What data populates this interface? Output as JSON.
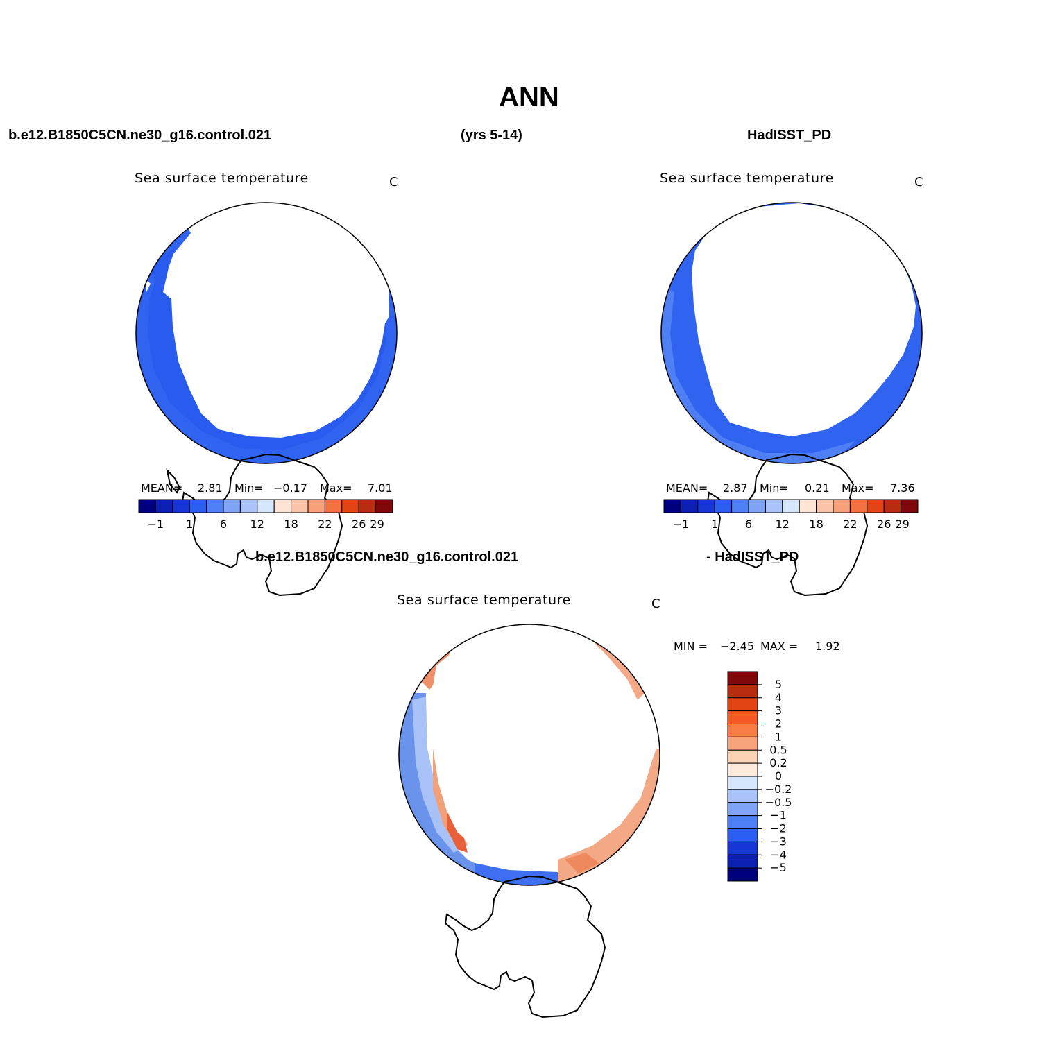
{
  "title": "ANN",
  "header": {
    "left": "b.e12.B1850C5CN.ne30_g16.control.021",
    "center": "(yrs 5-14)",
    "right": "HadISST_PD"
  },
  "diff_header": {
    "left": "b.e12.B1850C5CN.ne30_g16.control.021",
    "right": "- HadISST_PD"
  },
  "colors": {
    "ice": "#ffffff",
    "coast": "#000000",
    "ocean_cold": "#3366ee",
    "ocean_mid": "#2a5ef0",
    "diff_warm": "#f08a5c",
    "diff_cool": "#5f8de8"
  },
  "panels": [
    {
      "id": "model",
      "variable": "Sea surface temperature",
      "units": "C",
      "stats": {
        "mean_label": "MEAN=",
        "mean": "2.81",
        "min_label": "Min=",
        "min": "−0.17",
        "max_label": "Max=",
        "max": "7.01"
      }
    },
    {
      "id": "obs",
      "variable": "Sea surface temperature",
      "units": "C",
      "stats": {
        "mean_label": "MEAN=",
        "mean": "2.87",
        "min_label": "Min=",
        "min": "0.21",
        "max_label": "Max=",
        "max": "7.36"
      }
    },
    {
      "id": "diff",
      "variable": "Sea surface temperature",
      "units": "C",
      "stats": {
        "min_label": "MIN =",
        "min": "−2.45",
        "max_label": "MAX =",
        "max": "1.92"
      }
    }
  ],
  "sst_colorbar": {
    "colors": [
      "#00007f",
      "#0b1fb0",
      "#1736d6",
      "#2c5ef2",
      "#4d7ff5",
      "#7fa4f8",
      "#aac4fb",
      "#d6e6fd",
      "#fde4d4",
      "#fbc4a8",
      "#f7a07a",
      "#f37240",
      "#e24414",
      "#b82d10",
      "#80080a"
    ],
    "labels": [
      "−1",
      "1",
      "6",
      "12",
      "18",
      "22",
      "26",
      "29"
    ]
  },
  "diff_colorbar": {
    "colors": [
      "#80080a",
      "#b82d10",
      "#e24414",
      "#f55a25",
      "#f77c45",
      "#f9a57c",
      "#fcd2b4",
      "#fdeadc",
      "#d6e6fd",
      "#aac4fb",
      "#7fa4f8",
      "#4d7ff5",
      "#2c5ef2",
      "#1736d6",
      "#0b1fb0",
      "#00007f"
    ],
    "labels": [
      "5",
      "4",
      "3",
      "2",
      "1",
      "0.5",
      "0.2",
      "0",
      "−0.2",
      "−0.5",
      "−1",
      "−2",
      "−3",
      "−4",
      "−5"
    ]
  }
}
